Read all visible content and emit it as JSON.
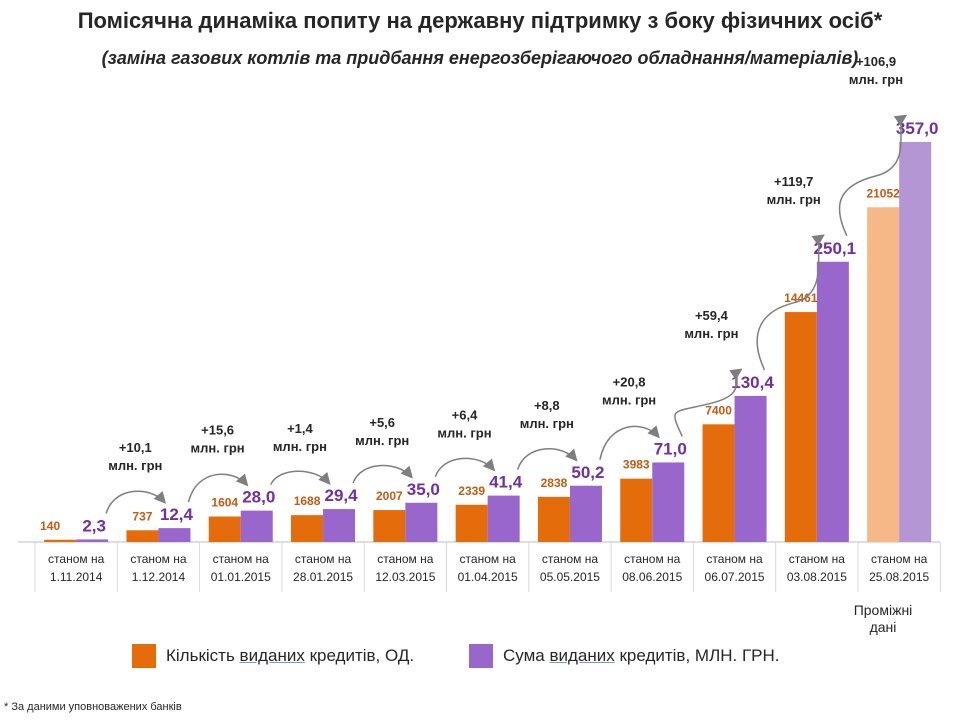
{
  "header": {
    "title": "Помісячна динаміка попиту на державну підтримку з боку фізичних осіб*",
    "subtitle": "(заміна газових котлів  та  придбання енергозберігаючого обладнання/матеріалів)"
  },
  "chart_data": {
    "type": "bar",
    "categories": [
      [
        "станом на",
        "1.11.2014"
      ],
      [
        "станом на",
        "1.12.2014"
      ],
      [
        "станом на",
        "01.01.2015"
      ],
      [
        "станом на",
        "28.01.2015"
      ],
      [
        "станом на",
        "12.03.2015"
      ],
      [
        "станом на",
        "01.04.2015"
      ],
      [
        "станом на",
        "05.05.2015"
      ],
      [
        "станом на",
        "08.06.2015"
      ],
      [
        "станом на",
        "06.07.2015"
      ],
      [
        "станом на",
        "03.08.2015"
      ],
      [
        "станом на",
        "25.08.2015"
      ]
    ],
    "series": [
      {
        "name": "Кількість виданих кредитів, ОД.",
        "values": [
          140,
          737,
          1604,
          1688,
          2007,
          2339,
          2838,
          3983,
          7400,
          14461,
          21052
        ],
        "labels": [
          "140",
          "737",
          "1604",
          "1688",
          "2007",
          "2339",
          "2838",
          "3983",
          "7400",
          "14461",
          "21052"
        ],
        "color": "#e46c0a",
        "interim_color": "#f5b886",
        "label_color": "#c55a11"
      },
      {
        "name": "Сума виданих кредитів, МЛН. ГРН.",
        "values": [
          2.3,
          12.4,
          28.0,
          29.4,
          35.0,
          41.4,
          50.2,
          71.0,
          130.4,
          250.1,
          357.0
        ],
        "labels": [
          "2,3",
          "12,4",
          "28,0",
          "29,4",
          "35,0",
          "41,4",
          "50,2",
          "71,0",
          "130,4",
          "250,1",
          "357,0"
        ],
        "color": "#9966cc",
        "interim_color": "#b596d4",
        "label_color": "#7030a0"
      }
    ],
    "increments": [
      {
        "value": "+10,1",
        "unit": "млн. грн"
      },
      {
        "value": "+15,6",
        "unit": "млн. грн"
      },
      {
        "value": "+1,4",
        "unit": "млн. грн"
      },
      {
        "value": "+5,6",
        "unit": "млн. грн"
      },
      {
        "value": "+6,4",
        "unit": "млн. грн"
      },
      {
        "value": "+8,8",
        "unit": "млн. грн"
      },
      {
        "value": "+20,8",
        "unit": "млн. грн"
      },
      {
        "value": "+59,4",
        "unit": "млн. грн"
      },
      {
        "value": "+119,7",
        "unit": "млн. грн"
      },
      {
        "value": "+106,9",
        "unit": "млн. грн"
      }
    ],
    "interim_note": "Проміжні дані",
    "legend_position": "bottom",
    "grid": false
  },
  "legend": [
    {
      "pre": "Кількість ",
      "underlined": "виданих",
      "post": " кредитів, ОД.",
      "color": "#e46c0a"
    },
    {
      "pre": "Сума ",
      "underlined": "виданих",
      "post": " кредитів, МЛН. ГРН.",
      "color": "#9966cc"
    }
  ],
  "footnote": "* За даними уповноважених банків"
}
